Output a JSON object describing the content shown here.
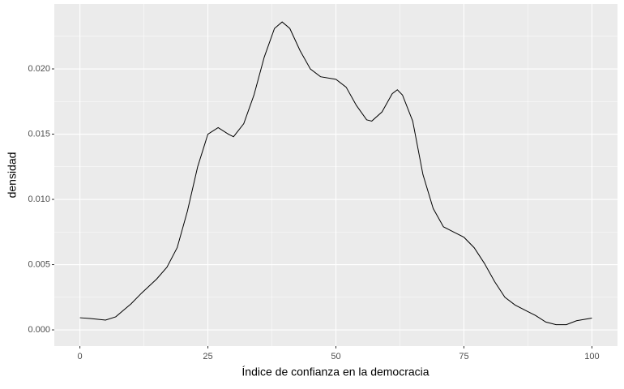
{
  "chart_data": {
    "type": "line",
    "x_label": "Índice de confianza en la democracia",
    "y_label": "densidad",
    "x": [
      0,
      2,
      5,
      7,
      10,
      12,
      15,
      17,
      19,
      21,
      23,
      25,
      27,
      29,
      30,
      32,
      34,
      36,
      38,
      39.5,
      41,
      43,
      45,
      47,
      50,
      52,
      54,
      56,
      57,
      59,
      61,
      62,
      63,
      65,
      67,
      69,
      71,
      73,
      75,
      77,
      79,
      81,
      83,
      85,
      87,
      89,
      91,
      93,
      95,
      97,
      100
    ],
    "values": [
      0.00093,
      0.00087,
      0.00075,
      0.001,
      0.002,
      0.0028,
      0.0039,
      0.0048,
      0.0063,
      0.0091,
      0.0125,
      0.015,
      0.0155,
      0.015,
      0.0148,
      0.0158,
      0.018,
      0.0209,
      0.0231,
      0.0236,
      0.0231,
      0.0214,
      0.02,
      0.0194,
      0.0192,
      0.0186,
      0.0172,
      0.0161,
      0.016,
      0.0167,
      0.0181,
      0.0184,
      0.018,
      0.016,
      0.0119,
      0.0093,
      0.0079,
      0.0075,
      0.0071,
      0.0063,
      0.0051,
      0.0037,
      0.0025,
      0.0019,
      0.0015,
      0.0011,
      0.0006,
      0.0004,
      0.0004,
      0.0007,
      0.0009
    ],
    "color": "#000000",
    "xlim": [
      -5,
      105
    ],
    "ylim": [
      -0.00124,
      0.02497
    ],
    "xticks": [
      0,
      25,
      50,
      75,
      100
    ],
    "yticks": [
      {
        "value": 0,
        "label": "0.000"
      },
      {
        "value": 0.005,
        "label": "0.005"
      },
      {
        "value": 0.01,
        "label": "0.010"
      },
      {
        "value": 0.015,
        "label": "0.015"
      },
      {
        "value": 0.02,
        "label": "0.020"
      }
    ],
    "grid": true
  }
}
